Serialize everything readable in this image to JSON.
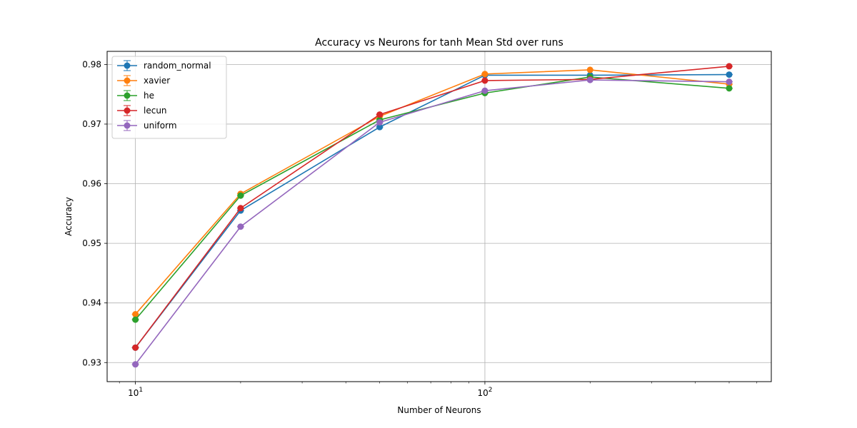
{
  "chart_data": {
    "type": "line",
    "title": "Accuracy vs Neurons for tanh Mean Std over runs",
    "xlabel": "Number of Neurons",
    "ylabel": "Accuracy",
    "xscale": "log",
    "xlim": [
      8.3,
      660
    ],
    "ylim": [
      0.9268,
      0.9822
    ],
    "x": [
      10,
      20,
      50,
      100,
      200,
      500
    ],
    "xtick_labels": [
      {
        "value": 10,
        "base": "10",
        "exp": "1"
      },
      {
        "value": 100,
        "base": "10",
        "exp": "2"
      }
    ],
    "yticks": [
      0.93,
      0.94,
      0.95,
      0.96,
      0.97,
      0.98
    ],
    "ytick_labels": [
      "0.93",
      "0.94",
      "0.95",
      "0.96",
      "0.97",
      "0.98"
    ],
    "grid": true,
    "legend_position": "top-left",
    "series": [
      {
        "name": "random_normal",
        "color": "#1f77b4",
        "values": [
          0.9325,
          0.9555,
          0.9695,
          0.9782,
          0.9782,
          0.9783
        ]
      },
      {
        "name": "xavier",
        "color": "#ff7f0e",
        "values": [
          0.9381,
          0.9583,
          0.9713,
          0.9784,
          0.9791,
          0.9767
        ]
      },
      {
        "name": "he",
        "color": "#2ca02c",
        "values": [
          0.9372,
          0.958,
          0.9707,
          0.9752,
          0.9779,
          0.976
        ]
      },
      {
        "name": "lecun",
        "color": "#d62728",
        "values": [
          0.9325,
          0.9559,
          0.9716,
          0.9773,
          0.9775,
          0.9797
        ]
      },
      {
        "name": "uniform",
        "color": "#9467bd",
        "values": [
          0.9297,
          0.9528,
          0.9703,
          0.9756,
          0.9774,
          0.9771
        ]
      }
    ]
  }
}
